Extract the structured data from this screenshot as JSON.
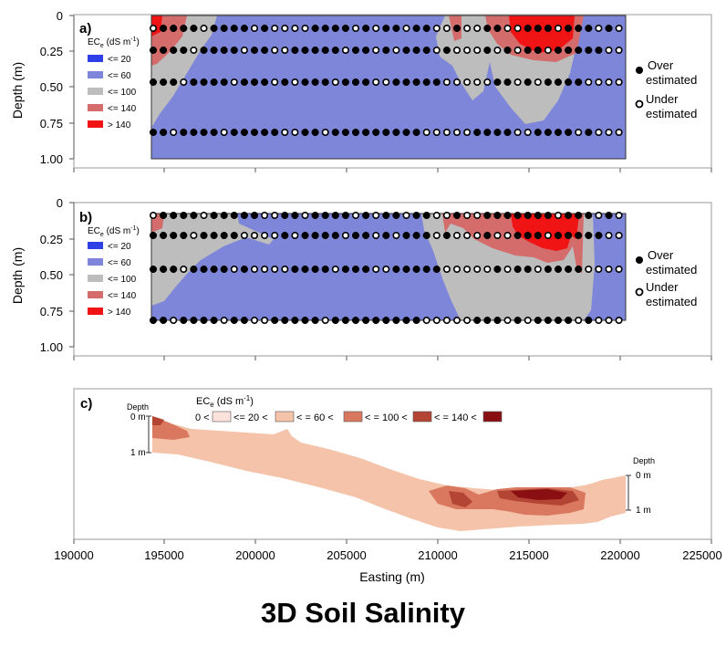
{
  "caption": "3D Soil Salinity",
  "colors": {
    "le20": "#2f3fe6",
    "le60": "#7e86d9",
    "le100": "#bdbdbd",
    "le140": "#d46c6c",
    "gt140": "#f01414",
    "c_b0": "#fbe2dc",
    "c_b1": "#f4c3a9",
    "c_b2": "#d9785f",
    "c_b3": "#b44434",
    "c_b4": "#8a0f12"
  },
  "chart_data": [
    {
      "panel": "a)",
      "type": "heatmap",
      "ylabel": "Depth (m)",
      "yticks": [
        "0",
        "0.25",
        "0.50",
        "0.75",
        "1.00"
      ],
      "ylim": [
        1.0,
        0
      ],
      "xlim": [
        190000,
        225000
      ],
      "legend_title": "ECe (dS m-1)",
      "legend_title_main": "EC",
      "legend_title_sub": "e",
      "legend_title_unit": " (dS m",
      "legend_title_exp": "-1",
      "legend_title_close": ")",
      "legend": [
        {
          "label": "<= 20",
          "color": "#2f3fe6"
        },
        {
          "label": "<= 60",
          "color": "#7e86d9"
        },
        {
          "label": "<= 100",
          "color": "#bdbdbd"
        },
        {
          "label": "<= 140",
          "color": "#d46c6c"
        },
        {
          "label": ">  140",
          "color": "#f01414"
        }
      ],
      "point_legend": [
        {
          "symbol": "filled",
          "lines": [
            "Over",
            "estimated"
          ]
        },
        {
          "symbol": "open",
          "lines": [
            "Under",
            "estimated"
          ]
        }
      ]
    },
    {
      "panel": "b)",
      "type": "heatmap",
      "ylabel": "Depth (m)",
      "yticks": [
        "0",
        "0.25",
        "0.50",
        "0.75",
        "1.00"
      ],
      "ylim": [
        1.0,
        0
      ],
      "xlim": [
        190000,
        225000
      ],
      "legend_title": "ECe (dS m-1)",
      "legend_title_main": "EC",
      "legend_title_sub": "e",
      "legend_title_unit": " (dS m",
      "legend_title_exp": "-1",
      "legend_title_close": ")",
      "legend": [
        {
          "label": "<= 20",
          "color": "#2f3fe6"
        },
        {
          "label": "<= 60",
          "color": "#7e86d9"
        },
        {
          "label": "<= 100",
          "color": "#bdbdbd"
        },
        {
          "label": "<= 140",
          "color": "#d46c6c"
        },
        {
          "label": ">  140",
          "color": "#f01414"
        }
      ],
      "point_legend": [
        {
          "symbol": "filled",
          "lines": [
            "Over",
            "estimated"
          ]
        },
        {
          "symbol": "open",
          "lines": [
            "Under",
            "estimated"
          ]
        }
      ]
    },
    {
      "panel": "c)",
      "type": "heatmap",
      "xlabel": "Easting (m)",
      "xticks": [
        "190000",
        "195000",
        "200000",
        "205000",
        "210000",
        "215000",
        "220000",
        "225000"
      ],
      "xlim": [
        190000,
        225000
      ],
      "depth_label": "Depth",
      "depth_left": [
        "0 m",
        "1 m"
      ],
      "depth_right": [
        "0 m",
        "1 m"
      ],
      "legend_title_main": "EC",
      "legend_title_sub": "e",
      "legend_title_unit": " (dS m",
      "legend_title_exp": "-1",
      "legend_title_close": ")",
      "legend": [
        {
          "sep": "0 <",
          "color": "#fbe2dc"
        },
        {
          "sep": "<= 20 <",
          "color": "#f4c3a9"
        },
        {
          "sep": "< = 60 <",
          "color": "#d9785f"
        },
        {
          "sep": "< = 100 <",
          "color": "#b44434"
        },
        {
          "sep": "< = 140 <",
          "color": "#8a0f12"
        }
      ]
    }
  ]
}
